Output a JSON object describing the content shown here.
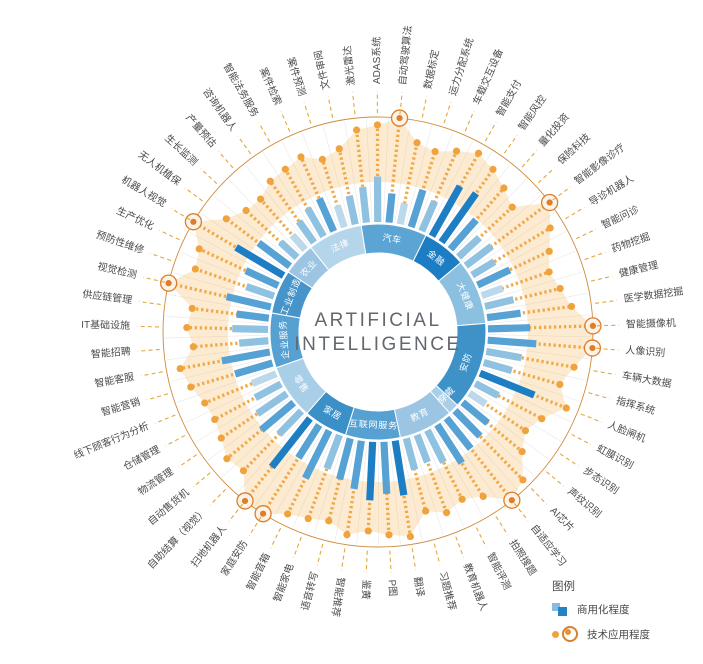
{
  "center": {
    "line1": "ARTIFICIAL",
    "line2": "INTELLIGENCE"
  },
  "legend": {
    "title": "图例",
    "items": [
      {
        "label": "商用化程度",
        "type": "bar"
      },
      {
        "label": "技术应用程度",
        "type": "dots"
      }
    ]
  },
  "colors": {
    "bar_palette": [
      "#bcd9ec",
      "#8fc1e1",
      "#56a2d5",
      "#1e7ec4"
    ],
    "orange": "#f0a23c",
    "orange_deep": "#dc7e2d",
    "peak_fill": "#fdf3e4",
    "ring_line": "#cf8a3e",
    "area_fill": "#f6b75b",
    "label_text": "#4b4b4b",
    "center_text": "#63686e",
    "dash_line": "#e1a83e",
    "spoke": "#ebebeb",
    "sector_label": "#ffffff"
  },
  "chart_data": {
    "type": "radial-bar",
    "title": "ARTIFICIAL INTELLIGENCE",
    "series_meta": [
      {
        "name": "商用化程度",
        "style": "blue-bar",
        "unit": "relative 0-100 (estimated, unlabeled axis)"
      },
      {
        "name": "技术应用程度",
        "style": "orange-dotted-ray",
        "unit": "relative 0-100 (estimated, unlabeled axis)"
      }
    ],
    "sectors": [
      {
        "name": "汽车",
        "color": "#5ba4d4",
        "items": [
          {
            "label": "激光雷达",
            "com": 55,
            "shade": 1,
            "tech": 88
          },
          {
            "label": "ADAS系统",
            "com": 70,
            "shade": 1,
            "tech": 92
          },
          {
            "label": "自动驾驶算法",
            "com": 45,
            "shade": 2,
            "tech": 100,
            "peak": true
          },
          {
            "label": "数据标定",
            "com": 33,
            "shade": 0,
            "tech": 78
          },
          {
            "label": "运力分配系统",
            "com": 60,
            "shade": 2,
            "tech": 74
          },
          {
            "label": "车载交互设备",
            "com": 50,
            "shade": 1,
            "tech": 82
          }
        ]
      },
      {
        "name": "金融",
        "color": "#1d7dc2",
        "items": [
          {
            "label": "智能支付",
            "com": 88,
            "shade": 3,
            "tech": 90
          },
          {
            "label": "智能风控",
            "com": 92,
            "shade": 3,
            "tech": 84
          },
          {
            "label": "量化投资",
            "com": 60,
            "shade": 2,
            "tech": 76
          },
          {
            "label": "保险科技",
            "com": 44,
            "shade": 1,
            "tech": 68
          }
        ]
      },
      {
        "name": "大健康",
        "color": "#8cc0e0",
        "items": [
          {
            "label": "智能影像诊疗",
            "com": 50,
            "shade": 1,
            "tech": 100,
            "peak": true
          },
          {
            "label": "导诊机器人",
            "com": 40,
            "shade": 1,
            "tech": 86
          },
          {
            "label": "智能问诊",
            "com": 55,
            "shade": 2,
            "tech": 74
          },
          {
            "label": "药物挖掘",
            "com": 34,
            "shade": 0,
            "tech": 66
          },
          {
            "label": "健康管理",
            "com": 45,
            "shade": 1,
            "tech": 72
          },
          {
            "label": "医学数据挖掘",
            "com": 52,
            "shade": 2,
            "tech": 80
          }
        ]
      },
      {
        "name": "安防",
        "color": "#3e92c8",
        "items": [
          {
            "label": "智能摄像机",
            "com": 65,
            "shade": 2,
            "tech": 100,
            "peak": true
          },
          {
            "label": "人像识别",
            "com": 75,
            "shade": 2,
            "tech": 100,
            "peak": true
          },
          {
            "label": "车辆大数据",
            "com": 55,
            "shade": 1,
            "tech": 84
          },
          {
            "label": "指挥系统",
            "com": 45,
            "shade": 1,
            "tech": 74
          },
          {
            "label": "人脸闸机",
            "com": 90,
            "shade": 3,
            "tech": 88
          },
          {
            "label": "虹膜识别",
            "com": 40,
            "shade": 1,
            "tech": 70
          },
          {
            "label": "步态识别",
            "com": 30,
            "shade": 0,
            "tech": 62
          },
          {
            "label": "声纹识别",
            "com": 50,
            "shade": 2,
            "tech": 72
          }
        ]
      },
      {
        "name": "可穿戴",
        "color": "#a9cfe8",
        "items": [
          {
            "label": "AI芯片",
            "com": 55,
            "shade": 2,
            "tech": 92
          }
        ]
      },
      {
        "name": "教育",
        "color": "#9bc5e2",
        "items": [
          {
            "label": "自适应学习",
            "com": 60,
            "shade": 2,
            "tech": 100,
            "peak": true
          },
          {
            "label": "拍照搜题",
            "com": 70,
            "shade": 2,
            "tech": 80
          },
          {
            "label": "智能评测",
            "com": 55,
            "shade": 1,
            "tech": 72
          },
          {
            "label": "教育机器人",
            "com": 45,
            "shade": 1,
            "tech": 78
          },
          {
            "label": "习题推荐",
            "com": 50,
            "shade": 1,
            "tech": 70
          }
        ]
      },
      {
        "name": "互联网服务",
        "color": "#56a0d2",
        "items": [
          {
            "label": "翻译",
            "com": 85,
            "shade": 3,
            "tech": 92
          },
          {
            "label": "P图",
            "com": 80,
            "shade": 2,
            "tech": 88
          },
          {
            "label": "鉴黄",
            "com": 90,
            "shade": 3,
            "tech": 84
          },
          {
            "label": "智能推荐",
            "com": 75,
            "shade": 2,
            "tech": 90
          },
          {
            "label": "语音转写",
            "com": 65,
            "shade": 2,
            "tech": 80
          }
        ]
      },
      {
        "name": "家居",
        "color": "#3b90c8",
        "items": [
          {
            "label": "智能家电",
            "com": 55,
            "shade": 1,
            "tech": 84
          },
          {
            "label": "智能音箱",
            "com": 82,
            "shade": 2,
            "tech": 88
          },
          {
            "label": "家庭安防",
            "com": 60,
            "shade": 2,
            "tech": 100,
            "peak": true
          },
          {
            "label": "扫地机器人",
            "com": 95,
            "shade": 3,
            "tech": 100,
            "peak": true
          }
        ]
      },
      {
        "name": "零售",
        "color": "#a9cfe8",
        "items": [
          {
            "label": "自助结算（视觉）",
            "com": 50,
            "shade": 1,
            "tech": 78
          },
          {
            "label": "自动售货机",
            "com": 65,
            "shade": 2,
            "tech": 82
          },
          {
            "label": "物流管理",
            "com": 55,
            "shade": 1,
            "tech": 74
          },
          {
            "label": "仓储管理",
            "com": 45,
            "shade": 1,
            "tech": 70
          },
          {
            "label": "线下顾客行为分析",
            "com": 40,
            "shade": 0,
            "tech": 72
          }
        ]
      },
      {
        "name": "企业服务",
        "color": "#56a0d2",
        "items": [
          {
            "label": "智能营销",
            "com": 60,
            "shade": 2,
            "tech": 80
          },
          {
            "label": "智能客服",
            "com": 75,
            "shade": 2,
            "tech": 86
          },
          {
            "label": "智能招聘",
            "com": 45,
            "shade": 1,
            "tech": 70
          },
          {
            "label": "IT基础设施",
            "com": 55,
            "shade": 1,
            "tech": 76
          },
          {
            "label": "供应链管理",
            "com": 50,
            "shade": 2,
            "tech": 72
          }
        ]
      },
      {
        "name": "工业制造",
        "color": "#4694ca",
        "items": [
          {
            "label": "视觉检测",
            "com": 70,
            "shade": 2,
            "tech": 100,
            "peak": true
          },
          {
            "label": "预防性维修",
            "com": 45,
            "shade": 1,
            "tech": 78
          },
          {
            "label": "生产优化",
            "com": 55,
            "shade": 2,
            "tech": 82
          },
          {
            "label": "机器人视觉",
            "com": 85,
            "shade": 3,
            "tech": 100,
            "peak": true
          }
        ]
      },
      {
        "name": "农业",
        "color": "#9bc5e2",
        "items": [
          {
            "label": "无人机植保",
            "com": 60,
            "shade": 2,
            "tech": 74
          },
          {
            "label": "生长监测",
            "com": 35,
            "shade": 1,
            "tech": 64
          },
          {
            "label": "产量预估",
            "com": 30,
            "shade": 0,
            "tech": 62
          }
        ]
      },
      {
        "name": "法律",
        "color": "#b5d5ea",
        "items": [
          {
            "label": "咨询机器人",
            "com": 40,
            "shade": 1,
            "tech": 70
          },
          {
            "label": "智能法务服务",
            "com": 50,
            "shade": 1,
            "tech": 72
          },
          {
            "label": "案件检索",
            "com": 55,
            "shade": 2,
            "tech": 76
          },
          {
            "label": "案件预测",
            "com": 35,
            "shade": 0,
            "tech": 66
          },
          {
            "label": "文件审阅",
            "com": 45,
            "shade": 1,
            "tech": 72
          }
        ]
      }
    ]
  }
}
